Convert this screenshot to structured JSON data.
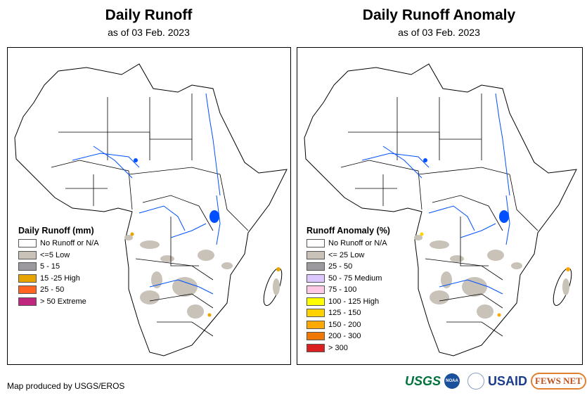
{
  "left": {
    "title": "Daily Runoff",
    "subtitle": "as of 03 Feb. 2023",
    "legend_title": "Daily Runoff (mm)",
    "legend": [
      {
        "label": "No Runoff or N/A",
        "color": "#ffffff"
      },
      {
        "label": "<=5 Low",
        "color": "#c8c2b8"
      },
      {
        "label": "5 - 15",
        "color": "#9c9a9e"
      },
      {
        "label": "15 -25 High",
        "color": "#e8a400"
      },
      {
        "label": "25 - 50",
        "color": "#ff6420"
      },
      {
        "label": "> 50 Extreme",
        "color": "#c0267e"
      }
    ]
  },
  "right": {
    "title": "Daily Runoff Anomaly",
    "subtitle": "as of 03 Feb. 2023",
    "legend_title": "Runoff Anomaly (%)",
    "legend": [
      {
        "label": "No Runoff or N/A",
        "color": "#ffffff"
      },
      {
        "label": "<= 25 Low",
        "color": "#c8c2b8"
      },
      {
        "label": "25 - 50",
        "color": "#9c9a9e"
      },
      {
        "label": "50 - 75 Medium",
        "color": "#dcc8ff"
      },
      {
        "label": "75 - 100",
        "color": "#ffc8e4"
      },
      {
        "label": "100 - 125 High",
        "color": "#ffff00"
      },
      {
        "label": "125 - 150",
        "color": "#ffd200"
      },
      {
        "label": "150 - 200",
        "color": "#ffa800"
      },
      {
        "label": "200 - 300",
        "color": "#f07800"
      },
      {
        "label": "> 300",
        "color": "#dc2020"
      }
    ]
  },
  "credit": "Map produced by USGS/EROS",
  "logos": [
    "USGS",
    "NOAA",
    "USAID",
    "FEWS NET"
  ],
  "colors": {
    "river": "#0050ff",
    "border": "#000000"
  }
}
